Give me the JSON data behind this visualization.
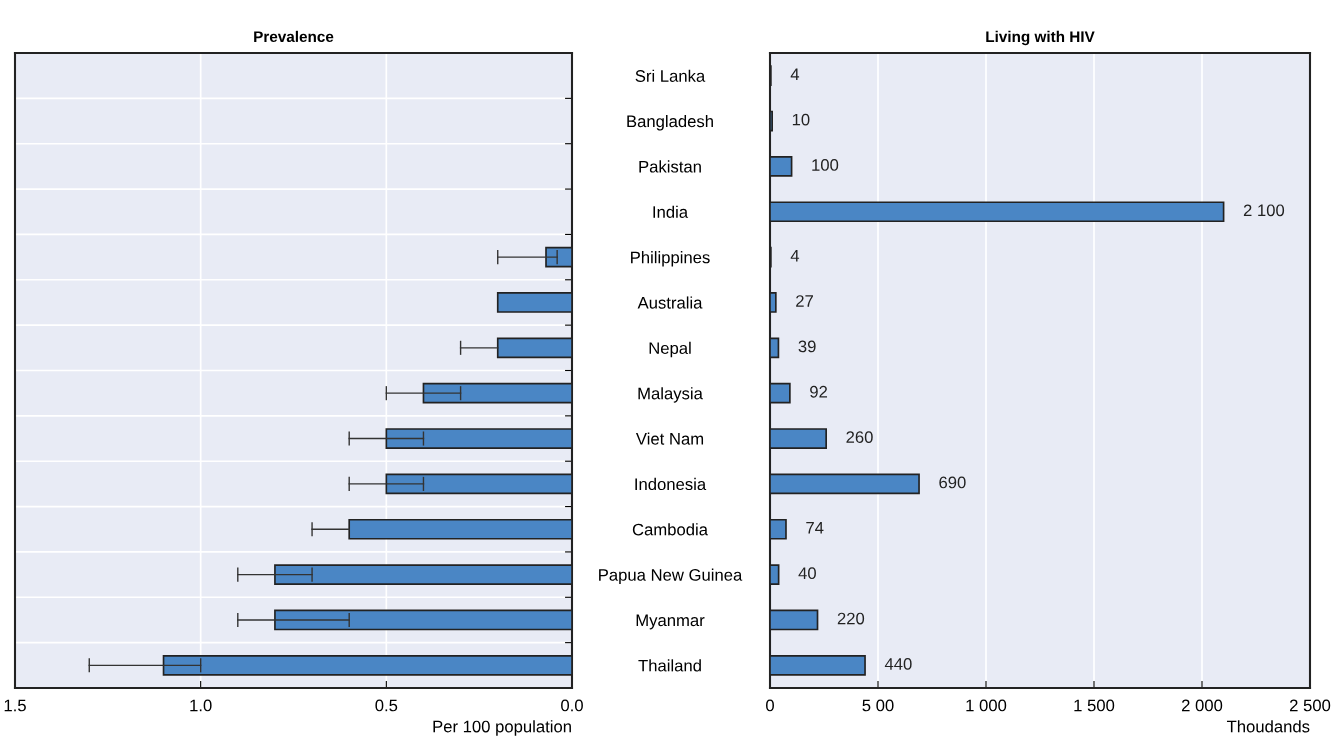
{
  "chart_data": [
    {
      "type": "bar",
      "orientation": "horizontal",
      "title": "Prevalence",
      "xlabel": "Per 100 population",
      "categories": [
        null,
        null,
        null,
        null,
        null,
        null,
        null,
        null,
        null,
        null,
        null,
        null,
        null,
        null
      ],
      "values": [
        null,
        null,
        null,
        null,
        0.07,
        0.2,
        0.2,
        0.4,
        0.5,
        0.5,
        0.6,
        0.8,
        0.8,
        1.1
      ],
      "errors": [
        null,
        null,
        null,
        null,
        [
          0.04,
          0.2
        ],
        null,
        [
          0.2,
          0.3
        ],
        [
          0.3,
          0.5
        ],
        [
          0.4,
          0.6
        ],
        [
          0.4,
          0.6
        ],
        [
          0.6,
          0.7
        ],
        [
          0.7,
          0.9
        ],
        [
          0.6,
          0.9
        ],
        [
          1.0,
          1.3
        ]
      ],
      "color": "#4a86c5",
      "xlim": [
        1.5,
        0.0
      ],
      "xticks": [
        1.5,
        {
          "value": 1.0,
          "label": "1.0"
        },
        0.5,
        {
          "value": 0.0,
          "label": "0.0"
        }
      ],
      "grid": true,
      "tick_labels": "x"
    },
    {
      "type": "bar",
      "orientation": "horizontal",
      "title": "Living with HIV",
      "xlabel": "Thoudands",
      "categories": [
        "Sri Lanka",
        "Bangladesh",
        "Pakistan",
        "India",
        "Philippines",
        "Australia",
        "Nepal",
        "Malaysia",
        "Viet Nam",
        "Indonesia",
        "Cambodia",
        "Papua New Guinea",
        "Myanmar",
        "Thailand"
      ],
      "values": [
        4,
        10,
        100,
        2100,
        4,
        27,
        39,
        92,
        260,
        690,
        74,
        40,
        220,
        440
      ],
      "value_labels": [
        "4",
        "10",
        "100",
        "2 100",
        "4",
        "27",
        "39",
        "92",
        "260",
        "690",
        "74",
        "40",
        "220",
        "440"
      ],
      "color": "#4a86c5",
      "xlim": [
        0,
        2500
      ],
      "xticks": [
        0,
        {
          "value": 500,
          "label": "5 00"
        },
        {
          "value": 1000,
          "label": "1 000"
        },
        {
          "value": 1500,
          "label": "1 500"
        },
        {
          "value": 2000,
          "label": "2 000"
        },
        {
          "value": 2500,
          "label": "2 500"
        }
      ],
      "grid": "x"
    }
  ]
}
